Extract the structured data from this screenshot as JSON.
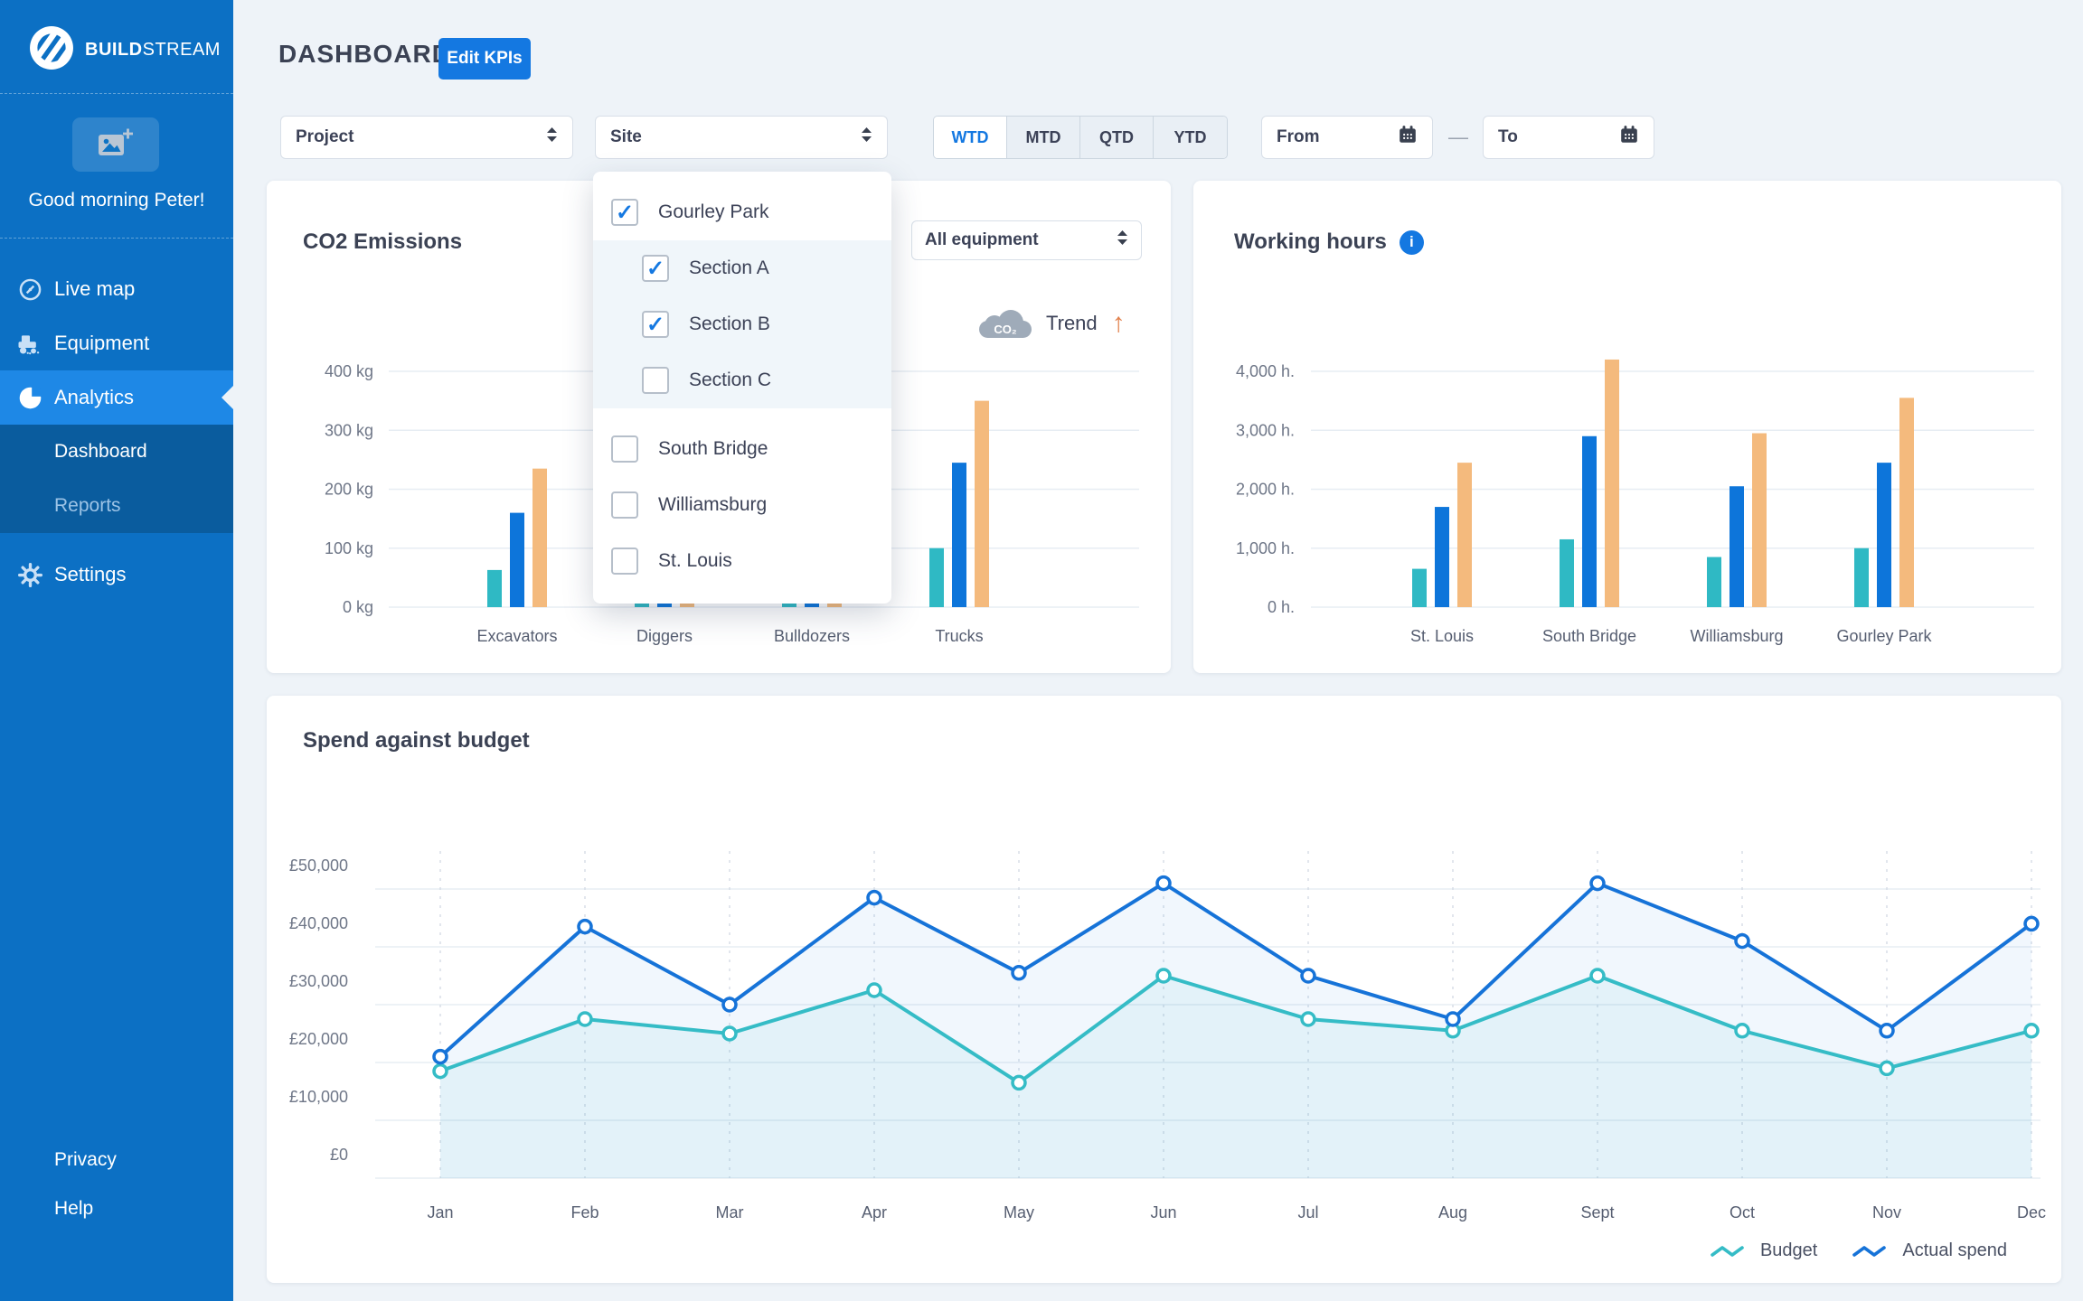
{
  "sidebar": {
    "brand_bold": "BUILD",
    "brand_light": "STREAM",
    "greeting": "Good morning Peter!",
    "nav": [
      {
        "label": "Live map",
        "icon": "compass-icon",
        "active": false
      },
      {
        "label": "Equipment",
        "icon": "tractor-icon",
        "active": false
      },
      {
        "label": "Analytics",
        "icon": "pie-chart-icon",
        "active": true
      }
    ],
    "subnav": [
      {
        "label": "Dashboard",
        "active": true
      },
      {
        "label": "Reports",
        "active": false
      }
    ],
    "settings": {
      "label": "Settings",
      "icon": "gear-icon"
    },
    "footer": [
      {
        "label": "Privacy"
      },
      {
        "label": "Help"
      }
    ]
  },
  "header": {
    "title": "DASHBOARD",
    "edit_button": "Edit KPIs"
  },
  "filters": {
    "project_placeholder": "Project",
    "site_placeholder": "Site",
    "periods": [
      "WTD",
      "MTD",
      "QTD",
      "YTD"
    ],
    "active_period": "WTD",
    "from_placeholder": "From",
    "to_placeholder": "To",
    "range_separator": "—"
  },
  "site_dropdown": {
    "options": [
      {
        "label": "Gourley Park",
        "checked": true,
        "level": 0
      },
      {
        "label": "Section A",
        "checked": true,
        "level": 1
      },
      {
        "label": "Section B",
        "checked": true,
        "level": 1
      },
      {
        "label": "Section C",
        "checked": false,
        "level": 1
      },
      {
        "label": "South Bridge",
        "checked": false,
        "level": 0
      },
      {
        "label": "Williamsburg",
        "checked": false,
        "level": 0
      },
      {
        "label": "St. Louis",
        "checked": false,
        "level": 0
      }
    ]
  },
  "colors": {
    "sidebar": "#0c70c4",
    "sidebar_active": "#1e88e6",
    "submenu": "#0a5c9e",
    "accent_blue": "#1478e1",
    "bar_teal": "#2fb9c4",
    "bar_blue": "#0d75da",
    "bar_orange": "#f4ba7d",
    "line_teal": "#35bcc6",
    "line_blue": "#1673d8",
    "trend_orange": "#e2814d"
  },
  "chart_data": [
    {
      "id": "co2",
      "type": "bar",
      "title": "CO2 Emissions",
      "equipment_filter": "All equipment",
      "trend": {
        "co2_label": "CO₂",
        "label": "Trend",
        "arrow": "↑",
        "direction": "up"
      },
      "categories": [
        "Excavators",
        "Diggers",
        "Bulldozers",
        "Trucks"
      ],
      "series": [
        {
          "name": "teal",
          "color": "#2fb9c4",
          "values": [
            63,
            20,
            15,
            100
          ]
        },
        {
          "name": "blue",
          "color": "#0d75da",
          "values": [
            160,
            28,
            22,
            245
          ]
        },
        {
          "name": "orange",
          "color": "#f4ba7d",
          "values": [
            235,
            25,
            18,
            350
          ]
        }
      ],
      "y_ticks": [
        {
          "v": 0,
          "label": "0 kg"
        },
        {
          "v": 100,
          "label": "100 kg"
        },
        {
          "v": 200,
          "label": "200 kg"
        },
        {
          "v": 300,
          "label": "300 kg"
        },
        {
          "v": 400,
          "label": "400 kg"
        }
      ],
      "ylim": [
        0,
        450
      ],
      "grid": {
        "horizontal": true
      }
    },
    {
      "id": "hours",
      "type": "bar",
      "title": "Working hours",
      "categories": [
        "St. Louis",
        "South Bridge",
        "Williamsburg",
        "Gourley Park"
      ],
      "series": [
        {
          "name": "teal",
          "color": "#2fb9c4",
          "values": [
            650,
            1150,
            850,
            1000
          ]
        },
        {
          "name": "blue",
          "color": "#0d75da",
          "values": [
            1700,
            2900,
            2050,
            2450
          ]
        },
        {
          "name": "orange",
          "color": "#f4ba7d",
          "values": [
            2450,
            4200,
            2950,
            3550
          ]
        }
      ],
      "y_ticks": [
        {
          "v": 0,
          "label": "0 h."
        },
        {
          "v": 1000,
          "label": "1,000 h."
        },
        {
          "v": 2000,
          "label": "2,000 h."
        },
        {
          "v": 3000,
          "label": "3,000 h."
        },
        {
          "v": 4000,
          "label": "4,000 h."
        }
      ],
      "ylim": [
        0,
        4500
      ],
      "grid": {
        "horizontal": true
      }
    },
    {
      "id": "spend",
      "type": "line",
      "title": "Spend against budget",
      "x": [
        "Jan",
        "Feb",
        "Mar",
        "Apr",
        "May",
        "Jun",
        "Jul",
        "Aug",
        "Sept",
        "Oct",
        "Nov",
        "Dec"
      ],
      "series": [
        {
          "name": "Budget",
          "color": "#35bcc6",
          "area": "rgba(53,188,198,0.07)",
          "values": [
            18500,
            27500,
            25000,
            32500,
            16500,
            35000,
            27500,
            25500,
            35000,
            25500,
            19000,
            25500
          ]
        },
        {
          "name": "Actual spend",
          "color": "#1673d8",
          "area": "rgba(22,115,216,0.06)",
          "values": [
            21000,
            43500,
            30000,
            48500,
            35500,
            51000,
            35000,
            27500,
            51000,
            41000,
            25500,
            44000
          ]
        }
      ],
      "y_ticks": [
        {
          "v": 0,
          "label": "£0"
        },
        {
          "v": 10000,
          "label": "£10,000"
        },
        {
          "v": 20000,
          "label": "£20,000"
        },
        {
          "v": 30000,
          "label": "£30,000"
        },
        {
          "v": 40000,
          "label": "£40,000"
        },
        {
          "v": 50000,
          "label": "£50,000"
        }
      ],
      "ylim": [
        0,
        55000
      ],
      "legend_position": "bottom-right",
      "grid": {
        "horizontal": true,
        "vertical": "dashed"
      }
    }
  ]
}
